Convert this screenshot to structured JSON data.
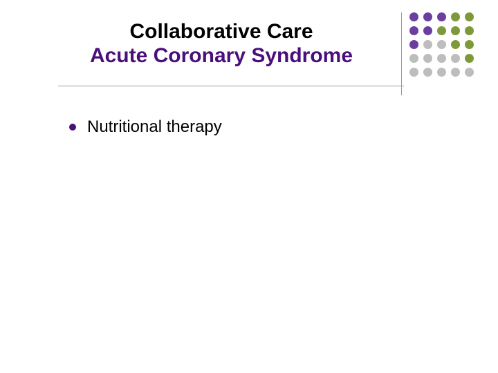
{
  "title": {
    "line1": "Collaborative Care",
    "line2": "Acute Coronary Syndrome",
    "color_line1": "#000000",
    "color_line2": "#4b0f7a",
    "fontsize": 30
  },
  "bullets": [
    {
      "text": "Nutritional therapy",
      "fontsize": 24,
      "color": "#000000",
      "dot_color": "#4b0f7a"
    }
  ],
  "decor": {
    "line_color": "#9a9a9a",
    "dot_colors": [
      [
        "#6b3fa0",
        "#6b3fa0",
        "#6b3fa0",
        "#7d9a3a",
        "#7d9a3a"
      ],
      [
        "#6b3fa0",
        "#6b3fa0",
        "#7d9a3a",
        "#7d9a3a",
        "#7d9a3a"
      ],
      [
        "#6b3fa0",
        "#bdbdbd",
        "#bdbdbd",
        "#7d9a3a",
        "#7d9a3a"
      ],
      [
        "#bdbdbd",
        "#bdbdbd",
        "#bdbdbd",
        "#bdbdbd",
        "#7d9a3a"
      ],
      [
        "#bdbdbd",
        "#bdbdbd",
        "#bdbdbd",
        "#bdbdbd",
        "#bdbdbd"
      ]
    ]
  },
  "background_color": "#ffffff"
}
